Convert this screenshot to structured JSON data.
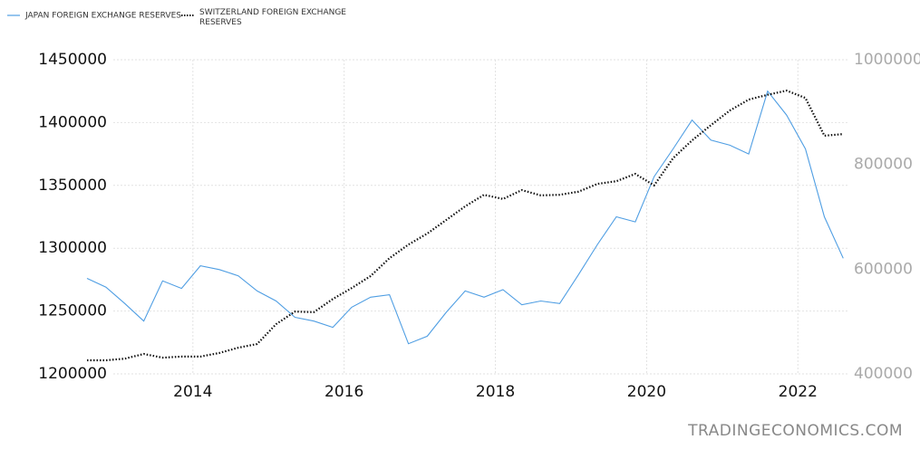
{
  "chart_data": {
    "type": "line",
    "source": "TRADINGECONOMICS.COM",
    "x": [
      2012.6,
      2012.85,
      2013.1,
      2013.35,
      2013.6,
      2013.85,
      2014.1,
      2014.35,
      2014.6,
      2014.85,
      2015.1,
      2015.35,
      2015.6,
      2015.85,
      2016.1,
      2016.35,
      2016.6,
      2016.85,
      2017.1,
      2017.35,
      2017.6,
      2017.85,
      2018.1,
      2018.35,
      2018.6,
      2018.85,
      2019.1,
      2019.35,
      2019.6,
      2019.85,
      2020.1,
      2020.35,
      2020.6,
      2020.85,
      2021.1,
      2021.35,
      2021.6,
      2021.85,
      2022.1,
      2022.35,
      2022.6
    ],
    "series": [
      {
        "name": "JAPAN FOREIGN EXCHANGE RESERVES",
        "color": "#4f9ee3",
        "style": "solid",
        "values": [
          1276000,
          1269000,
          1256000,
          1242000,
          1274000,
          1268000,
          1286000,
          1283000,
          1278000,
          1266000,
          1258000,
          1245000,
          1242000,
          1237000,
          1253000,
          1261000,
          1263000,
          1224000,
          1230000,
          1249000,
          1266000,
          1261000,
          1267000,
          1255000,
          1258000,
          1256000,
          1279000,
          1303000,
          1325000,
          1321000,
          1357000,
          1379000,
          1402000,
          1386000,
          1382000,
          1375000,
          1425000,
          1406000,
          1379000,
          1325000,
          1292000
        ]
      },
      {
        "name": "SWITZERLAND FOREIGN EXCHANGE RESERVES",
        "color": "#111111",
        "style": "dotted",
        "axis": "y2",
        "values": [
          426000,
          426000,
          429000,
          438000,
          431000,
          433000,
          433000,
          440000,
          450000,
          457000,
          495000,
          519000,
          518000,
          543000,
          564000,
          587000,
          621000,
          647000,
          668000,
          694000,
          720000,
          742000,
          734000,
          751000,
          741000,
          742000,
          748000,
          763000,
          768000,
          782000,
          760000,
          812000,
          846000,
          875000,
          903000,
          924000,
          933000,
          941000,
          927000,
          855000,
          858000
        ]
      }
    ],
    "xlim": [
      2012.6,
      2022.62
    ],
    "xticks": [
      2014,
      2016,
      2018,
      2020,
      2022
    ],
    "ylim": [
      1200000,
      1450000
    ],
    "yticks": [
      1200000,
      1250000,
      1300000,
      1350000,
      1400000,
      1450000
    ],
    "y2lim": [
      400000,
      1000000
    ],
    "y2ticks": [
      400000,
      600000,
      800000,
      1000000
    ],
    "grid": true,
    "legend": "top-left"
  }
}
